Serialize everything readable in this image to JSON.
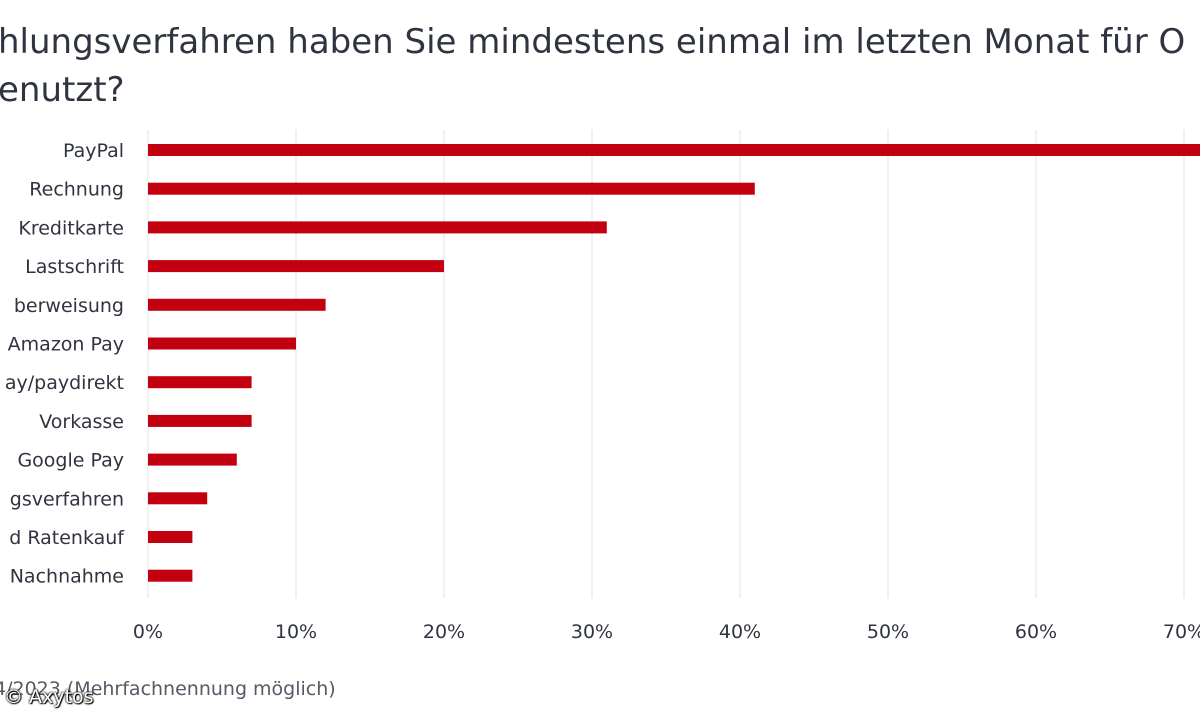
{
  "title": {
    "line1": "hlungsverfahren haben Sie mindestens einmal im letzten Monat für O",
    "line2": "enutzt?"
  },
  "footnote": {
    "text": "4/2023 (Mehrfachnennung möglich)",
    "copyright": "© Axytos"
  },
  "colors": {
    "bar": "#c30010",
    "grid": "#e3e3e3",
    "text": "#2f3440"
  },
  "chart_data": {
    "type": "bar",
    "orientation": "horizontal",
    "categories": [
      "PayPal",
      "Rechnung",
      "Kreditkarte",
      "Lastschrift",
      "berweisung",
      "Amazon Pay",
      "ay/paydirekt",
      "Vorkasse",
      "Google Pay",
      "gsverfahren",
      "d Ratenkauf",
      "Nachnahme"
    ],
    "values": [
      72,
      41,
      31,
      20,
      12,
      10,
      7,
      7,
      6,
      4,
      3,
      3
    ],
    "xticks": [
      0,
      10,
      20,
      30,
      40,
      50,
      60,
      70
    ],
    "xtick_labels": [
      "0%",
      "10%",
      "20%",
      "30%",
      "40%",
      "50%",
      "60%",
      "70%"
    ],
    "xlim": [
      0,
      72
    ],
    "grid": true,
    "legend": "none"
  }
}
